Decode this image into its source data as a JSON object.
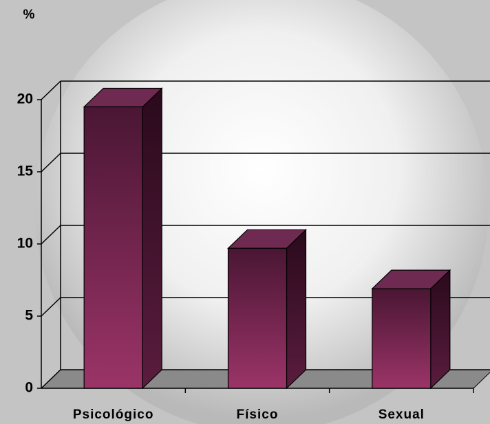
{
  "chart_data": {
    "type": "bar3d",
    "ylabel": "%",
    "categories": [
      "Psicológico",
      "Físico",
      "Sexual"
    ],
    "values": [
      19.5,
      9.7,
      6.9
    ],
    "color": "#8e2f62",
    "ylim": [
      0,
      20
    ],
    "yticks": [
      0,
      5,
      10,
      15,
      20
    ],
    "grid": true
  }
}
